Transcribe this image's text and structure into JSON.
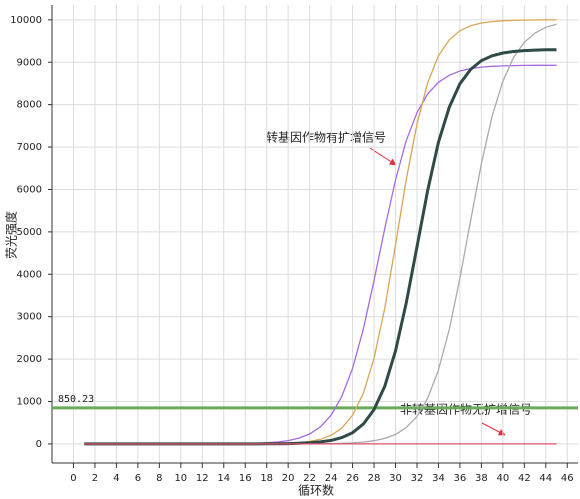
{
  "chart_data": {
    "type": "line",
    "x_label": "循环数",
    "y_label": "荧光强度",
    "x": [
      1,
      2,
      3,
      4,
      5,
      6,
      7,
      8,
      9,
      10,
      11,
      12,
      13,
      14,
      15,
      16,
      17,
      18,
      19,
      20,
      21,
      22,
      23,
      24,
      25,
      26,
      27,
      28,
      29,
      30,
      31,
      32,
      33,
      34,
      35,
      36,
      37,
      38,
      39,
      40,
      41,
      42,
      43,
      44,
      45
    ],
    "series": [
      {
        "color": "#a66be0",
        "width": 1.3,
        "values": [
          0,
          0,
          0,
          0,
          0,
          0,
          0,
          0,
          0,
          0,
          0,
          1,
          2,
          3,
          5,
          8,
          15,
          26,
          45,
          79,
          136,
          235,
          402,
          678,
          1118,
          1782,
          2706,
          3849,
          5081,
          6223,
          7150,
          7812,
          8253,
          8528,
          8693,
          8794,
          8851,
          8885,
          8904,
          8915,
          8921,
          8925,
          8927,
          8928,
          8929
        ]
      },
      {
        "color": "#d9a656",
        "width": 1.3,
        "values": [
          0,
          0,
          0,
          0,
          0,
          0,
          0,
          0,
          0,
          0,
          0,
          0,
          0,
          0,
          0,
          1,
          3,
          5,
          9,
          17,
          32,
          59,
          110,
          203,
          373,
          676,
          1192,
          2016,
          3205,
          4688,
          6225,
          7548,
          8518,
          9149,
          9526,
          9741,
          9859,
          9925,
          9959,
          9978,
          9988,
          9994,
          9997,
          9998,
          9999
        ]
      },
      {
        "color": "#aaaaaa",
        "width": 1.3,
        "values": [
          0,
          0,
          0,
          0,
          0,
          0,
          0,
          0,
          0,
          0,
          0,
          0,
          0,
          0,
          0,
          0,
          0,
          0,
          0,
          1,
          2,
          3,
          5,
          8,
          14,
          25,
          43,
          75,
          130,
          223,
          385,
          649,
          1081,
          1739,
          2689,
          3906,
          5277,
          6610,
          7728,
          8554,
          9116,
          9470,
          9690,
          9823,
          9896
        ]
      },
      {
        "color": "#2f4a48",
        "width": 3,
        "values": [
          0,
          0,
          0,
          0,
          0,
          0,
          0,
          0,
          0,
          0,
          0,
          0,
          0,
          0,
          0,
          0,
          1,
          2,
          4,
          8,
          14,
          26,
          47,
          84,
          149,
          265,
          467,
          809,
          1362,
          2193,
          3321,
          4650,
          5981,
          7110,
          7935,
          8493,
          8832,
          9038,
          9152,
          9217,
          9254,
          9275,
          9287,
          9293,
          9296
        ]
      },
      {
        "color": "#e0506a",
        "width": 1.3,
        "values": [
          0,
          0,
          0,
          0,
          0,
          0,
          0,
          0,
          0,
          0,
          0,
          0,
          0,
          0,
          0,
          0,
          0,
          0,
          0,
          0,
          0,
          0,
          0,
          0,
          0,
          0,
          0,
          0,
          0,
          0,
          0,
          0,
          0,
          0,
          0,
          0,
          0,
          0,
          0,
          0,
          0,
          0,
          0,
          0,
          0
        ]
      }
    ],
    "threshold": 850.23,
    "threshold_color": "#6aaa5a",
    "annotations": [
      "转基因作物有扩增信号",
      "非转基因作物无扩增信号"
    ],
    "xlim": [
      -2,
      47
    ],
    "ylim": [
      -450,
      10350
    ],
    "xticks": [
      0,
      2,
      4,
      6,
      8,
      10,
      12,
      14,
      16,
      18,
      20,
      22,
      24,
      26,
      28,
      30,
      32,
      34,
      36,
      38,
      40,
      42,
      44,
      46
    ],
    "yticks": [
      0,
      1000,
      2000,
      3000,
      4000,
      5000,
      6000,
      7000,
      8000,
      9000,
      10000
    ],
    "grid": true
  }
}
